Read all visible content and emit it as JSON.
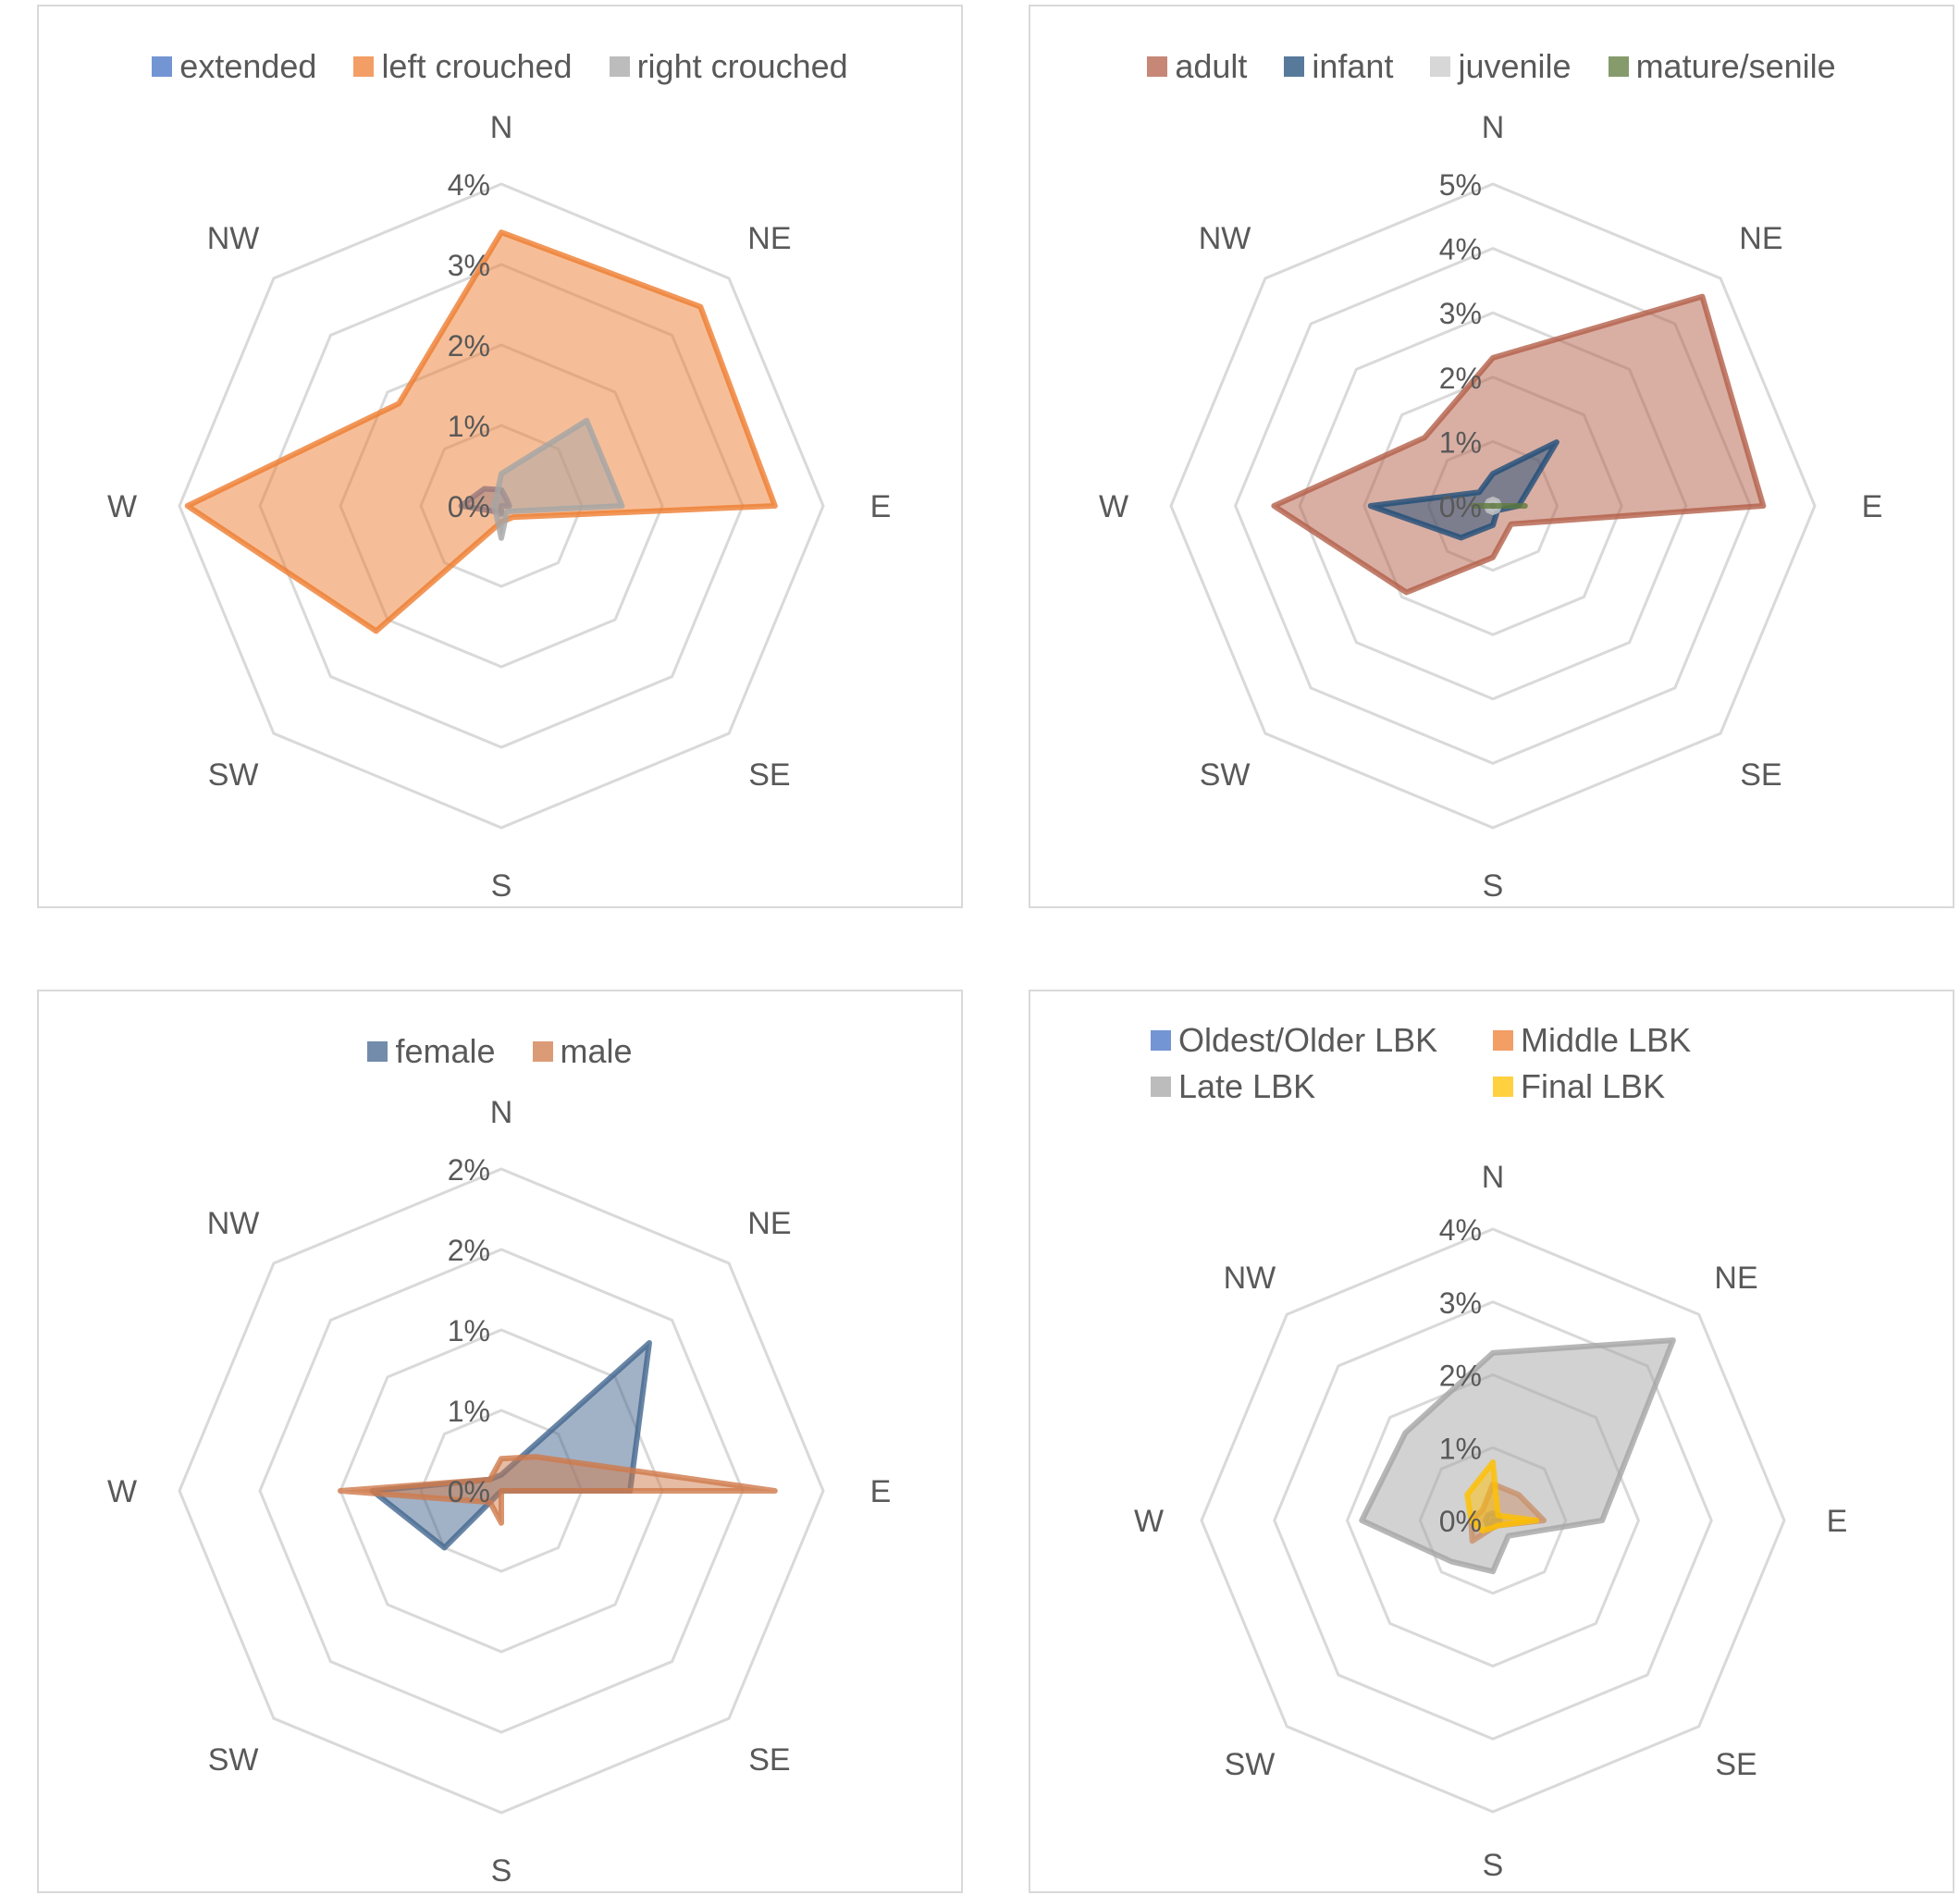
{
  "chart_data": [
    {
      "type": "radar",
      "title": "",
      "categories": [
        "N",
        "NE",
        "E",
        "SE",
        "S",
        "SW",
        "W",
        "NW"
      ],
      "tick_labels": [
        "0%",
        "1%",
        "2%",
        "3%",
        "4%"
      ],
      "rmax": 4,
      "legend_position": "top",
      "series": [
        {
          "name": "extended",
          "color": "#4472c4",
          "values": [
            0.2,
            0.1,
            0.1,
            0.0,
            0.1,
            0.1,
            0.5,
            0.3
          ]
        },
        {
          "name": "left crouched",
          "color": "#ed7d31",
          "values": [
            3.4,
            3.5,
            3.4,
            0.2,
            0.2,
            2.2,
            3.9,
            1.8
          ]
        },
        {
          "name": "right crouched",
          "color": "#a5a5a5",
          "values": [
            0.4,
            1.5,
            1.5,
            0.1,
            0.4,
            0.1,
            0.1,
            0.1
          ]
        }
      ]
    },
    {
      "type": "radar",
      "title": "",
      "categories": [
        "N",
        "NE",
        "E",
        "SE",
        "S",
        "SW",
        "W",
        "NW"
      ],
      "tick_labels": [
        "0%",
        "1%",
        "2%",
        "3%",
        "4%",
        "5%"
      ],
      "rmax": 5,
      "legend_position": "top",
      "series": [
        {
          "name": "adult",
          "color": "#b35f48",
          "values": [
            2.3,
            4.6,
            4.2,
            0.4,
            0.8,
            1.9,
            3.4,
            1.5
          ]
        },
        {
          "name": "infant",
          "color": "#1f4e79",
          "values": [
            0.5,
            1.4,
            0.4,
            0.1,
            0.3,
            0.7,
            1.9,
            0.3
          ]
        },
        {
          "name": "juvenile",
          "color": "#c9c9c9",
          "values": [
            0.1,
            0.1,
            0.1,
            0.1,
            0.1,
            0.1,
            0.1,
            0.1
          ]
        },
        {
          "name": "mature/senile",
          "color": "#5e7a3b",
          "values": [
            0.0,
            0.0,
            0.5,
            0.0,
            0.0,
            0.0,
            0.3,
            0.0
          ]
        }
      ]
    },
    {
      "type": "radar",
      "title": "",
      "categories": [
        "N",
        "NE",
        "E",
        "SE",
        "S",
        "SW",
        "W",
        "NW"
      ],
      "tick_labels": [
        "0%",
        "1%",
        "1%",
        "2%",
        "2%"
      ],
      "rmax": 2.0,
      "legend_position": "top",
      "series": [
        {
          "name": "female",
          "color": "#44668f",
          "values": [
            0.1,
            1.3,
            0.8,
            0.0,
            0.0,
            0.5,
            0.8,
            0.1
          ]
        },
        {
          "name": "male",
          "color": "#d0794a",
          "values": [
            0.2,
            0.3,
            1.7,
            0.0,
            0.2,
            0.1,
            1.0,
            0.1
          ]
        }
      ]
    },
    {
      "type": "radar",
      "title": "",
      "categories": [
        "N",
        "NE",
        "E",
        "SE",
        "S",
        "SW",
        "W",
        "NW"
      ],
      "tick_labels": [
        "0%",
        "1%",
        "2%",
        "3%",
        "4%"
      ],
      "rmax": 4,
      "legend_position": "top",
      "series": [
        {
          "name": "Oldest/Older LBK",
          "color": "#4472c4",
          "values": [
            0.1,
            0.1,
            0.1,
            0.0,
            0.1,
            0.1,
            0.1,
            0.1
          ]
        },
        {
          "name": "Middle LBK",
          "color": "#ed7d31",
          "values": [
            0.5,
            0.5,
            0.7,
            0.1,
            0.1,
            0.4,
            0.3,
            0.2
          ]
        },
        {
          "name": "Late LBK",
          "color": "#a5a5a5",
          "values": [
            2.3,
            3.5,
            1.5,
            0.3,
            0.7,
            0.8,
            1.8,
            1.7
          ]
        },
        {
          "name": "Final LBK",
          "color": "#ffc000",
          "values": [
            0.8,
            0.1,
            0.6,
            0.1,
            0.1,
            0.2,
            0.3,
            0.5
          ]
        }
      ]
    }
  ]
}
